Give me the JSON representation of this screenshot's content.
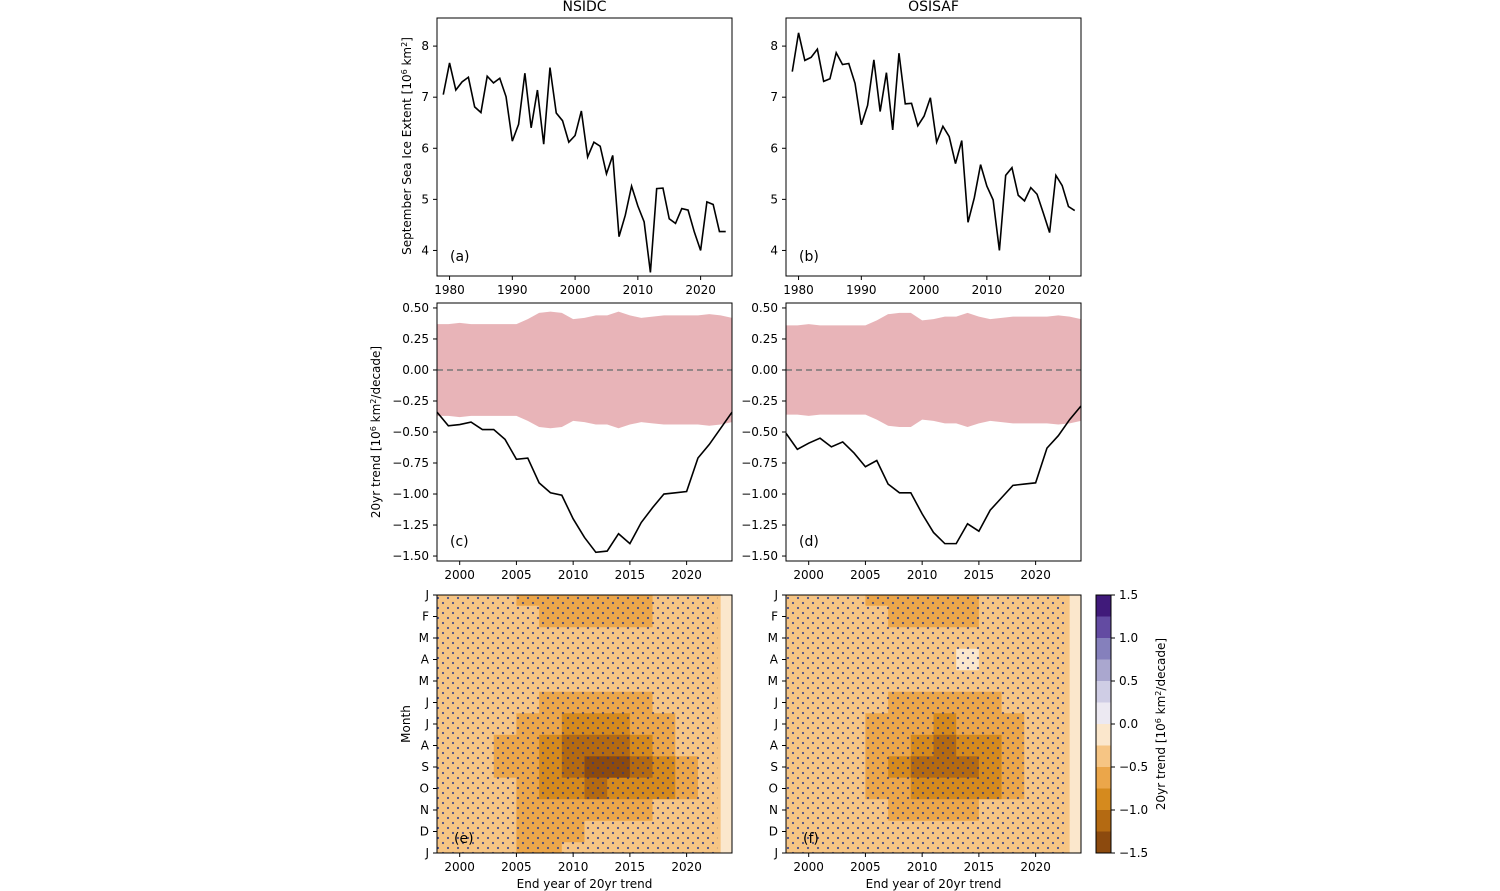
{
  "chart_data": [
    {
      "id": "a",
      "type": "line",
      "title": "NSIDC",
      "panel_label": "(a)",
      "xlabel": "",
      "ylabel": "September Sea Ice Extent [10",
      "ylabel_sup": "6",
      "ylabel_tail": " km",
      "ylabel_sup2": "2",
      "ylabel_end": "]",
      "xlim": [
        1978,
        2025
      ],
      "ylim": [
        3.5,
        8.55
      ],
      "xticks": [
        1980,
        1990,
        2000,
        2010,
        2020
      ],
      "yticks": [
        4,
        5,
        6,
        7,
        8
      ],
      "x": [
        1979,
        1980,
        1981,
        1982,
        1983,
        1984,
        1985,
        1986,
        1987,
        1988,
        1989,
        1990,
        1991,
        1992,
        1993,
        1994,
        1995,
        1996,
        1997,
        1998,
        1999,
        2000,
        2001,
        2002,
        2003,
        2004,
        2005,
        2006,
        2007,
        2008,
        2009,
        2010,
        2011,
        2012,
        2013,
        2014,
        2015,
        2016,
        2017,
        2018,
        2019,
        2020,
        2021,
        2022,
        2023,
        2024
      ],
      "values": [
        7.05,
        7.67,
        7.14,
        7.3,
        7.39,
        6.81,
        6.7,
        7.41,
        7.28,
        7.37,
        7.01,
        6.14,
        6.47,
        7.47,
        6.4,
        7.14,
        6.08,
        7.58,
        6.69,
        6.54,
        6.12,
        6.25,
        6.73,
        5.83,
        6.12,
        6.04,
        5.5,
        5.86,
        4.27,
        4.69,
        5.26,
        4.87,
        4.56,
        3.57,
        5.21,
        5.22,
        4.62,
        4.53,
        4.82,
        4.79,
        4.36,
        4.0,
        4.95,
        4.9,
        4.37,
        4.37
      ]
    },
    {
      "id": "b",
      "type": "line",
      "title": "OSISAF",
      "panel_label": "(b)",
      "xlim": [
        1978,
        2025
      ],
      "ylim": [
        3.5,
        8.55
      ],
      "xticks": [
        1980,
        1990,
        2000,
        2010,
        2020
      ],
      "yticks": [
        4,
        5,
        6,
        7,
        8
      ],
      "x": [
        1979,
        1980,
        1981,
        1982,
        1983,
        1984,
        1985,
        1986,
        1987,
        1988,
        1989,
        1990,
        1991,
        1992,
        1993,
        1994,
        1995,
        1996,
        1997,
        1998,
        1999,
        2000,
        2001,
        2002,
        2003,
        2004,
        2005,
        2006,
        2007,
        2008,
        2009,
        2010,
        2011,
        2012,
        2013,
        2014,
        2015,
        2016,
        2017,
        2018,
        2019,
        2020,
        2021,
        2022,
        2023,
        2024
      ],
      "values": [
        7.5,
        8.26,
        7.72,
        7.78,
        7.94,
        7.31,
        7.36,
        7.87,
        7.64,
        7.66,
        7.27,
        6.46,
        6.84,
        7.73,
        6.72,
        7.48,
        6.36,
        7.86,
        6.87,
        6.88,
        6.44,
        6.63,
        6.99,
        6.12,
        6.43,
        6.23,
        5.7,
        6.15,
        4.55,
        5.03,
        5.68,
        5.26,
        4.99,
        4.0,
        5.47,
        5.62,
        5.08,
        4.97,
        5.23,
        5.1,
        4.73,
        4.35,
        5.47,
        5.27,
        4.86,
        4.78
      ]
    },
    {
      "id": "c",
      "type": "line",
      "panel_label": "(c)",
      "ylabel": "20yr trend [10",
      "ylabel_sup": "6",
      "ylabel_tail": " km",
      "ylabel_sup2": "2",
      "ylabel_end": "/decade]",
      "xlim": [
        1998,
        2024
      ],
      "ylim": [
        -1.54,
        0.54
      ],
      "xticks": [
        2000,
        2005,
        2010,
        2015,
        2020
      ],
      "yticks": [
        -1.5,
        -1.25,
        -1.0,
        -0.75,
        -0.5,
        -0.25,
        0.0,
        0.25,
        0.5
      ],
      "ytick_labels": [
        "−1.50",
        "−1.25",
        "−1.00",
        "−0.75",
        "−0.50",
        "−0.25",
        "0.00",
        "0.25",
        "0.50"
      ],
      "x": [
        1998,
        1999,
        2000,
        2001,
        2002,
        2003,
        2004,
        2005,
        2006,
        2007,
        2008,
        2009,
        2010,
        2011,
        2012,
        2013,
        2014,
        2015,
        2016,
        2017,
        2018,
        2019,
        2020,
        2021,
        2022,
        2023,
        2024
      ],
      "values": [
        -0.34,
        -0.45,
        -0.44,
        -0.42,
        -0.48,
        -0.48,
        -0.56,
        -0.72,
        -0.71,
        -0.91,
        -0.99,
        -1.01,
        -1.2,
        -1.35,
        -1.47,
        -1.46,
        -1.32,
        -1.4,
        -1.23,
        -1.11,
        -1.0,
        -0.99,
        -0.98,
        -0.71,
        -0.6,
        -0.47,
        -0.34
      ],
      "band_upper": [
        0.37,
        0.37,
        0.38,
        0.37,
        0.37,
        0.37,
        0.37,
        0.37,
        0.41,
        0.46,
        0.47,
        0.46,
        0.41,
        0.42,
        0.44,
        0.44,
        0.47,
        0.44,
        0.42,
        0.43,
        0.44,
        0.44,
        0.44,
        0.44,
        0.45,
        0.44,
        0.42
      ],
      "band_lower": [
        -0.37,
        -0.37,
        -0.38,
        -0.37,
        -0.37,
        -0.37,
        -0.37,
        -0.37,
        -0.41,
        -0.46,
        -0.47,
        -0.46,
        -0.41,
        -0.42,
        -0.44,
        -0.44,
        -0.47,
        -0.44,
        -0.42,
        -0.43,
        -0.44,
        -0.44,
        -0.44,
        -0.44,
        -0.45,
        -0.44,
        -0.42
      ],
      "band_color": "#e8b4b8",
      "zero_line": "dashed"
    },
    {
      "id": "d",
      "type": "line",
      "panel_label": "(d)",
      "xlim": [
        1998,
        2024
      ],
      "ylim": [
        -1.54,
        0.54
      ],
      "xticks": [
        2000,
        2005,
        2010,
        2015,
        2020
      ],
      "yticks": [
        -1.5,
        -1.25,
        -1.0,
        -0.75,
        -0.5,
        -0.25,
        0.0,
        0.25,
        0.5
      ],
      "ytick_labels": [
        "−1.50",
        "−1.25",
        "−1.00",
        "−0.75",
        "−0.50",
        "−0.25",
        "0.00",
        "0.25",
        "0.50"
      ],
      "x": [
        1998,
        1999,
        2000,
        2001,
        2002,
        2003,
        2004,
        2005,
        2006,
        2007,
        2008,
        2009,
        2010,
        2011,
        2012,
        2013,
        2014,
        2015,
        2016,
        2017,
        2018,
        2019,
        2020,
        2021,
        2022,
        2023,
        2024
      ],
      "values": [
        -0.51,
        -0.64,
        -0.59,
        -0.55,
        -0.62,
        -0.58,
        -0.67,
        -0.78,
        -0.73,
        -0.92,
        -0.99,
        -0.99,
        -1.16,
        -1.31,
        -1.4,
        -1.4,
        -1.24,
        -1.3,
        -1.13,
        -1.03,
        -0.93,
        -0.92,
        -0.91,
        -0.63,
        -0.53,
        -0.4,
        -0.29
      ],
      "band_upper": [
        0.36,
        0.36,
        0.37,
        0.36,
        0.36,
        0.36,
        0.36,
        0.36,
        0.4,
        0.45,
        0.46,
        0.46,
        0.4,
        0.41,
        0.43,
        0.43,
        0.46,
        0.43,
        0.41,
        0.42,
        0.43,
        0.43,
        0.43,
        0.43,
        0.44,
        0.43,
        0.41
      ],
      "band_lower": [
        -0.36,
        -0.36,
        -0.37,
        -0.36,
        -0.36,
        -0.36,
        -0.36,
        -0.36,
        -0.4,
        -0.45,
        -0.46,
        -0.46,
        -0.4,
        -0.41,
        -0.43,
        -0.43,
        -0.46,
        -0.43,
        -0.41,
        -0.42,
        -0.43,
        -0.43,
        -0.43,
        -0.43,
        -0.44,
        -0.43,
        -0.41
      ],
      "band_color": "#e8b4b8",
      "zero_line": "dashed"
    },
    {
      "id": "e",
      "type": "heatmap",
      "panel_label": "(e)",
      "xlabel": "End year of 20yr trend",
      "ylabel": "Month",
      "xlim": [
        1998,
        2024
      ],
      "xticks": [
        2000,
        2005,
        2010,
        2015,
        2020
      ],
      "ylabels": [
        "J",
        "F",
        "M",
        "A",
        "M",
        "J",
        "J",
        "A",
        "S",
        "O",
        "N",
        "D",
        "J"
      ],
      "stippling": true,
      "x": [
        1998,
        2000,
        2002,
        2004,
        2006,
        2008,
        2010,
        2012,
        2014,
        2016,
        2018,
        2020,
        2022,
        2024
      ],
      "z": [
        [
          -0.45,
          -0.45,
          -0.45,
          -0.45,
          -0.55,
          -0.55,
          -0.55,
          -0.55,
          -0.55,
          -0.55,
          -0.45,
          -0.45,
          -0.35,
          -0.1
        ],
        [
          -0.45,
          -0.45,
          -0.4,
          -0.45,
          -0.5,
          -0.55,
          -0.55,
          -0.55,
          -0.55,
          -0.55,
          -0.45,
          -0.45,
          -0.35,
          -0.1
        ],
        [
          -0.45,
          -0.45,
          -0.45,
          -0.45,
          -0.45,
          -0.45,
          -0.45,
          -0.45,
          -0.45,
          -0.45,
          -0.45,
          -0.45,
          -0.35,
          -0.1
        ],
        [
          -0.45,
          -0.45,
          -0.45,
          -0.45,
          -0.45,
          -0.45,
          -0.45,
          -0.45,
          -0.4,
          -0.45,
          -0.45,
          -0.45,
          -0.35,
          -0.1
        ],
        [
          -0.45,
          -0.4,
          -0.45,
          -0.45,
          -0.45,
          -0.45,
          -0.45,
          -0.45,
          -0.45,
          -0.45,
          -0.45,
          -0.45,
          -0.35,
          -0.1
        ],
        [
          -0.45,
          -0.45,
          -0.45,
          -0.45,
          -0.45,
          -0.55,
          -0.6,
          -0.6,
          -0.6,
          -0.55,
          -0.45,
          -0.45,
          -0.35,
          -0.1
        ],
        [
          -0.45,
          -0.45,
          -0.45,
          -0.5,
          -0.55,
          -0.65,
          -0.8,
          -0.8,
          -0.8,
          -0.7,
          -0.6,
          -0.45,
          -0.35,
          -0.1
        ],
        [
          -0.45,
          -0.45,
          -0.45,
          -0.55,
          -0.65,
          -0.8,
          -1.05,
          -1.15,
          -1.1,
          -0.95,
          -0.7,
          -0.5,
          -0.35,
          -0.1
        ],
        [
          -0.45,
          -0.45,
          -0.45,
          -0.55,
          -0.7,
          -0.9,
          -1.15,
          -1.35,
          -1.3,
          -1.05,
          -0.8,
          -0.55,
          -0.4,
          -0.1
        ],
        [
          -0.45,
          -0.45,
          -0.45,
          -0.5,
          -0.65,
          -0.8,
          -0.95,
          -1.05,
          -1.0,
          -0.95,
          -0.8,
          -0.55,
          -0.35,
          -0.1
        ],
        [
          -0.45,
          -0.45,
          -0.45,
          -0.45,
          -0.55,
          -0.6,
          -0.6,
          -0.6,
          -0.6,
          -0.55,
          -0.5,
          -0.45,
          -0.35,
          -0.1
        ],
        [
          -0.45,
          -0.45,
          -0.45,
          -0.45,
          -0.55,
          -0.55,
          -0.55,
          -0.45,
          -0.45,
          -0.45,
          -0.45,
          -0.45,
          -0.35,
          -0.1
        ],
        [
          -0.45,
          -0.45,
          -0.45,
          -0.45,
          -0.55,
          -0.55,
          -0.45,
          -0.45,
          -0.45,
          -0.45,
          -0.45,
          -0.45,
          -0.35,
          -0.1
        ]
      ]
    },
    {
      "id": "f",
      "type": "heatmap",
      "panel_label": "(f)",
      "xlabel": "End year of 20yr trend",
      "xlim": [
        1998,
        2024
      ],
      "xticks": [
        2000,
        2005,
        2010,
        2015,
        2020
      ],
      "ylabels": [
        "J",
        "F",
        "M",
        "A",
        "M",
        "J",
        "J",
        "A",
        "S",
        "O",
        "N",
        "D",
        "J"
      ],
      "stippling": true,
      "x": [
        1998,
        2000,
        2002,
        2004,
        2006,
        2008,
        2010,
        2012,
        2014,
        2016,
        2018,
        2020,
        2022,
        2024
      ],
      "z": [
        [
          -0.45,
          -0.45,
          -0.45,
          -0.45,
          -0.55,
          -0.55,
          -0.55,
          -0.55,
          -0.55,
          -0.45,
          -0.45,
          -0.45,
          -0.35,
          -0.1
        ],
        [
          -0.45,
          -0.45,
          -0.45,
          -0.45,
          -0.5,
          -0.55,
          -0.55,
          -0.55,
          -0.55,
          -0.45,
          -0.45,
          -0.45,
          -0.35,
          -0.1
        ],
        [
          -0.45,
          -0.45,
          -0.45,
          -0.45,
          -0.45,
          -0.45,
          -0.45,
          -0.45,
          -0.45,
          -0.45,
          -0.45,
          -0.45,
          -0.35,
          -0.1
        ],
        [
          -0.45,
          -0.45,
          -0.45,
          -0.45,
          -0.45,
          -0.45,
          -0.45,
          -0.45,
          -0.2,
          -0.45,
          -0.45,
          -0.45,
          -0.35,
          -0.1
        ],
        [
          -0.45,
          -0.45,
          -0.45,
          -0.45,
          -0.45,
          -0.45,
          -0.45,
          -0.45,
          -0.45,
          -0.45,
          -0.45,
          -0.45,
          -0.35,
          -0.1
        ],
        [
          -0.45,
          -0.45,
          -0.45,
          -0.45,
          -0.45,
          -0.55,
          -0.6,
          -0.6,
          -0.6,
          -0.55,
          -0.45,
          -0.45,
          -0.35,
          -0.1
        ],
        [
          -0.45,
          -0.45,
          -0.45,
          -0.5,
          -0.55,
          -0.6,
          -0.75,
          -0.8,
          -0.75,
          -0.65,
          -0.55,
          -0.45,
          -0.35,
          -0.1
        ],
        [
          -0.45,
          -0.45,
          -0.45,
          -0.5,
          -0.6,
          -0.75,
          -0.95,
          -1.05,
          -0.95,
          -0.8,
          -0.6,
          -0.5,
          -0.35,
          -0.1
        ],
        [
          -0.45,
          -0.45,
          -0.45,
          -0.5,
          -0.6,
          -0.8,
          -1.05,
          -1.25,
          -1.1,
          -0.85,
          -0.65,
          -0.5,
          -0.4,
          -0.15
        ],
        [
          -0.45,
          -0.45,
          -0.45,
          -0.5,
          -0.6,
          -0.7,
          -0.85,
          -0.9,
          -0.9,
          -0.8,
          -0.65,
          -0.5,
          -0.35,
          -0.1
        ],
        [
          -0.45,
          -0.45,
          -0.45,
          -0.45,
          -0.5,
          -0.6,
          -0.6,
          -0.55,
          -0.55,
          -0.5,
          -0.45,
          -0.45,
          -0.35,
          -0.1
        ],
        [
          -0.45,
          -0.45,
          -0.45,
          -0.45,
          -0.5,
          -0.5,
          -0.45,
          -0.45,
          -0.4,
          -0.45,
          -0.45,
          -0.45,
          -0.35,
          -0.1
        ],
        [
          -0.45,
          -0.45,
          -0.45,
          -0.45,
          -0.5,
          -0.5,
          -0.45,
          -0.4,
          -0.4,
          -0.45,
          -0.45,
          -0.45,
          -0.35,
          -0.1
        ]
      ]
    }
  ],
  "colorbar": {
    "label": "20yr trend [10",
    "label_sup": "6",
    "label_tail": " km",
    "label_sup2": "2",
    "label_end": "/decade]",
    "levels": [
      -1.5,
      -1.25,
      -1.0,
      -0.75,
      -0.5,
      -0.25,
      0.0,
      0.25,
      0.5,
      0.75,
      1.0,
      1.25,
      1.5
    ],
    "ticks": [
      -1.5,
      -1.0,
      -0.5,
      0.0,
      0.5,
      1.0,
      1.5
    ],
    "tick_labels": [
      "−1.5",
      "−1.0",
      "−0.5",
      "0.0",
      "0.5",
      "1.0",
      "1.5"
    ],
    "colors": [
      "#8c4a0e",
      "#b46a12",
      "#d58a1e",
      "#eba64a",
      "#f6c584",
      "#fbe7cc",
      "#ece9f2",
      "#cfcde5",
      "#aaa7cf",
      "#8580bc",
      "#634ba2",
      "#401a7a"
    ]
  }
}
